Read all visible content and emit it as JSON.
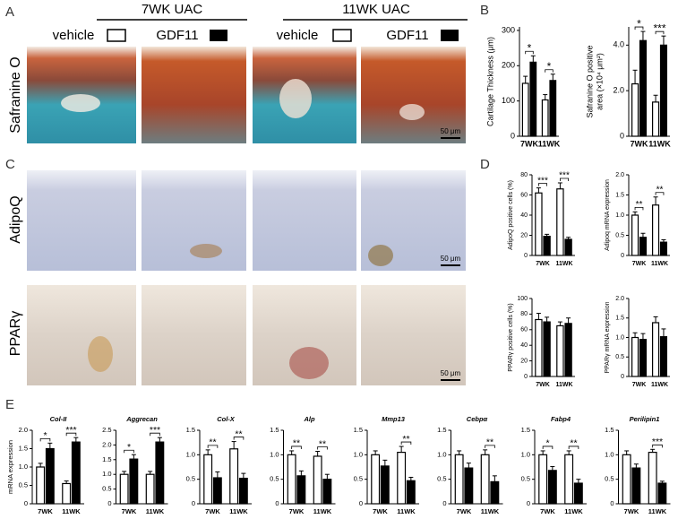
{
  "panel_labels": [
    "A",
    "B",
    "C",
    "D",
    "E"
  ],
  "images": {
    "groups": [
      {
        "title": "7WK  UAC",
        "legend": [
          "vehicle",
          "GDF11"
        ]
      },
      {
        "title": "11WK  UAC",
        "legend": [
          "vehicle",
          "GDF11"
        ]
      }
    ],
    "rows": [
      "Safranine O",
      "AdipoQ",
      "PPARγ"
    ],
    "scale_bars": [
      "50 μm",
      "50 μm",
      "50 μm"
    ]
  },
  "chart_data": [
    {
      "type": "bar",
      "ylabel": [
        "Cartilage Thickness (μm)"
      ],
      "categories": [
        "7WK",
        "11WK"
      ],
      "series": [
        {
          "color": "#ffffff",
          "values": [
            150,
            103
          ],
          "errors": [
            20,
            15
          ]
        },
        {
          "color": "#000000",
          "values": [
            210,
            158
          ],
          "errors": [
            18,
            18
          ]
        }
      ],
      "significance": [
        "*",
        "*"
      ],
      "ylim": [
        0,
        310
      ],
      "yticks": [
        0,
        100,
        200,
        300
      ]
    },
    {
      "type": "bar",
      "ylabel": [
        "Safranine O positive",
        "area (×10⁴ μm²)"
      ],
      "categories": [
        "7WK",
        "11WK"
      ],
      "series": [
        {
          "color": "#ffffff",
          "values": [
            2.3,
            1.5
          ],
          "errors": [
            0.6,
            0.3
          ]
        },
        {
          "color": "#000000",
          "values": [
            4.2,
            4.0
          ],
          "errors": [
            0.4,
            0.4
          ]
        }
      ],
      "significance": [
        "*",
        "***"
      ],
      "ylim": [
        0,
        4.8
      ],
      "yticks": [
        0,
        {
          "value": 2,
          "label": "2.0"
        },
        {
          "value": 4,
          "label": "4.0"
        }
      ]
    },
    {
      "type": "bar",
      "ylabel": [
        "AdipoQ positive cells (%)"
      ],
      "categories": [
        "7WK",
        "11WK"
      ],
      "series": [
        {
          "color": "#ffffff",
          "values": [
            62,
            66
          ],
          "errors": [
            5,
            6
          ]
        },
        {
          "color": "#000000",
          "values": [
            19,
            16
          ],
          "errors": [
            2,
            2
          ]
        }
      ],
      "significance": [
        "***",
        "***"
      ],
      "ylim": [
        0,
        80
      ],
      "yticks": [
        0,
        20,
        40,
        60,
        80
      ]
    },
    {
      "type": "bar",
      "ylabel": [
        "Adipoq mRNA expression"
      ],
      "categories": [
        "7WK",
        "11WK"
      ],
      "series": [
        {
          "color": "#ffffff",
          "values": [
            1.0,
            1.25
          ],
          "errors": [
            0.08,
            0.2
          ]
        },
        {
          "color": "#000000",
          "values": [
            0.45,
            0.33
          ],
          "errors": [
            0.1,
            0.06
          ]
        }
      ],
      "significance": [
        "**",
        "**"
      ],
      "ylim": [
        0,
        2
      ],
      "yticks": [
        0,
        0.5,
        {
          "value": 1,
          "label": "1.0"
        },
        1.5,
        {
          "value": 2,
          "label": "2.0"
        }
      ]
    },
    {
      "type": "bar",
      "ylabel": [
        "PPARγ positive cells (%)"
      ],
      "categories": [
        "7WK",
        "11WK"
      ],
      "series": [
        {
          "color": "#ffffff",
          "values": [
            73,
            65
          ],
          "errors": [
            8,
            5
          ]
        },
        {
          "color": "#000000",
          "values": [
            70,
            68
          ],
          "errors": [
            6,
            7
          ]
        }
      ],
      "significance": [
        null,
        null
      ],
      "ylim": [
        0,
        100
      ],
      "yticks": [
        0,
        20,
        40,
        60,
        80,
        100
      ]
    },
    {
      "type": "bar",
      "ylabel": [
        "PPARγ mRNA expression"
      ],
      "categories": [
        "7WK",
        "11WK"
      ],
      "series": [
        {
          "color": "#ffffff",
          "values": [
            1.0,
            1.38
          ],
          "errors": [
            0.12,
            0.15
          ]
        },
        {
          "color": "#000000",
          "values": [
            0.95,
            1.02
          ],
          "errors": [
            0.15,
            0.2
          ]
        }
      ],
      "significance": [
        null,
        null
      ],
      "ylim": [
        0,
        2
      ],
      "yticks": [
        0,
        0.5,
        {
          "value": 1,
          "label": "1.0"
        },
        1.5,
        {
          "value": 2,
          "label": "2.0"
        }
      ]
    },
    {
      "type": "bar",
      "title": "Col-II",
      "ylabel": [
        "mRNA expression"
      ],
      "categories": [
        "7WK",
        "11WK"
      ],
      "series": [
        {
          "color": "#ffffff",
          "values": [
            1.0,
            0.55
          ],
          "errors": [
            0.1,
            0.07
          ]
        },
        {
          "color": "#000000",
          "values": [
            1.5,
            1.68
          ],
          "errors": [
            0.15,
            0.12
          ]
        }
      ],
      "significance": [
        "*",
        "***"
      ],
      "ylim": [
        0,
        2
      ],
      "yticks": [
        0,
        0.5,
        {
          "value": 1,
          "label": "1.0"
        },
        1.5,
        {
          "value": 2,
          "label": "2.0"
        }
      ]
    },
    {
      "type": "bar",
      "title": "Aggrecan",
      "categories": [
        "7WK",
        "11WK"
      ],
      "series": [
        {
          "color": "#ffffff",
          "values": [
            1.0,
            1.0
          ],
          "errors": [
            0.1,
            0.1
          ]
        },
        {
          "color": "#000000",
          "values": [
            1.52,
            2.1
          ],
          "errors": [
            0.15,
            0.15
          ]
        }
      ],
      "significance": [
        "*",
        "***"
      ],
      "ylim": [
        0,
        2.5
      ],
      "yticks": [
        0,
        0.5,
        {
          "value": 1,
          "label": "1.0"
        },
        1.5,
        {
          "value": 2,
          "label": "2.0"
        },
        2.5
      ]
    },
    {
      "type": "bar",
      "title": "Col-X",
      "categories": [
        "7WK",
        "11WK"
      ],
      "series": [
        {
          "color": "#ffffff",
          "values": [
            1.0,
            1.12
          ],
          "errors": [
            0.1,
            0.15
          ]
        },
        {
          "color": "#000000",
          "values": [
            0.53,
            0.52
          ],
          "errors": [
            0.12,
            0.1
          ]
        }
      ],
      "significance": [
        "**",
        "**"
      ],
      "ylim": [
        0,
        1.5
      ],
      "yticks": [
        0,
        0.5,
        {
          "value": 1,
          "label": "1.0"
        },
        1.5
      ]
    },
    {
      "type": "bar",
      "title": "Alp",
      "categories": [
        "7WK",
        "11WK"
      ],
      "series": [
        {
          "color": "#ffffff",
          "values": [
            1.0,
            0.97
          ],
          "errors": [
            0.08,
            0.1
          ]
        },
        {
          "color": "#000000",
          "values": [
            0.57,
            0.5
          ],
          "errors": [
            0.1,
            0.1
          ]
        }
      ],
      "significance": [
        "**",
        "**"
      ],
      "ylim": [
        0,
        1.5
      ],
      "yticks": [
        0,
        0.5,
        {
          "value": 1,
          "label": "1.0"
        },
        1.5
      ]
    },
    {
      "type": "bar",
      "title": "Mmp13",
      "categories": [
        "7WK",
        "11WK"
      ],
      "series": [
        {
          "color": "#ffffff",
          "values": [
            1.0,
            1.05
          ],
          "errors": [
            0.08,
            0.12
          ]
        },
        {
          "color": "#000000",
          "values": [
            0.77,
            0.47
          ],
          "errors": [
            0.12,
            0.07
          ]
        }
      ],
      "significance": [
        null,
        "**"
      ],
      "ylim": [
        0,
        1.5
      ],
      "yticks": [
        0,
        0.5,
        {
          "value": 1,
          "label": "1.0"
        },
        1.5
      ]
    },
    {
      "type": "bar",
      "title": "Cebpα",
      "categories": [
        "7WK",
        "11WK"
      ],
      "series": [
        {
          "color": "#ffffff",
          "values": [
            1.0,
            1.0
          ],
          "errors": [
            0.08,
            0.1
          ]
        },
        {
          "color": "#000000",
          "values": [
            0.73,
            0.45
          ],
          "errors": [
            0.1,
            0.12
          ]
        }
      ],
      "significance": [
        null,
        "**"
      ],
      "ylim": [
        0,
        1.5
      ],
      "yticks": [
        0,
        0.5,
        {
          "value": 1,
          "label": "1.0"
        },
        1.5
      ]
    },
    {
      "type": "bar",
      "title": "Fabp4",
      "categories": [
        "7WK",
        "11WK"
      ],
      "series": [
        {
          "color": "#ffffff",
          "values": [
            1.0,
            1.0
          ],
          "errors": [
            0.08,
            0.08
          ]
        },
        {
          "color": "#000000",
          "values": [
            0.68,
            0.42
          ],
          "errors": [
            0.08,
            0.08
          ]
        }
      ],
      "significance": [
        "*",
        "**"
      ],
      "ylim": [
        0,
        1.5
      ],
      "yticks": [
        0,
        0.5,
        {
          "value": 1,
          "label": "1.0"
        },
        1.5
      ]
    },
    {
      "type": "bar",
      "title": "Perilipin1",
      "categories": [
        "7WK",
        "11WK"
      ],
      "series": [
        {
          "color": "#ffffff",
          "values": [
            1.0,
            1.05
          ],
          "errors": [
            0.08,
            0.06
          ]
        },
        {
          "color": "#000000",
          "values": [
            0.73,
            0.42
          ],
          "errors": [
            0.08,
            0.04
          ]
        }
      ],
      "significance": [
        null,
        "***"
      ],
      "ylim": [
        0,
        1.5
      ],
      "yticks": [
        0,
        0.5,
        {
          "value": 1,
          "label": "1.0"
        },
        1.5
      ]
    }
  ]
}
